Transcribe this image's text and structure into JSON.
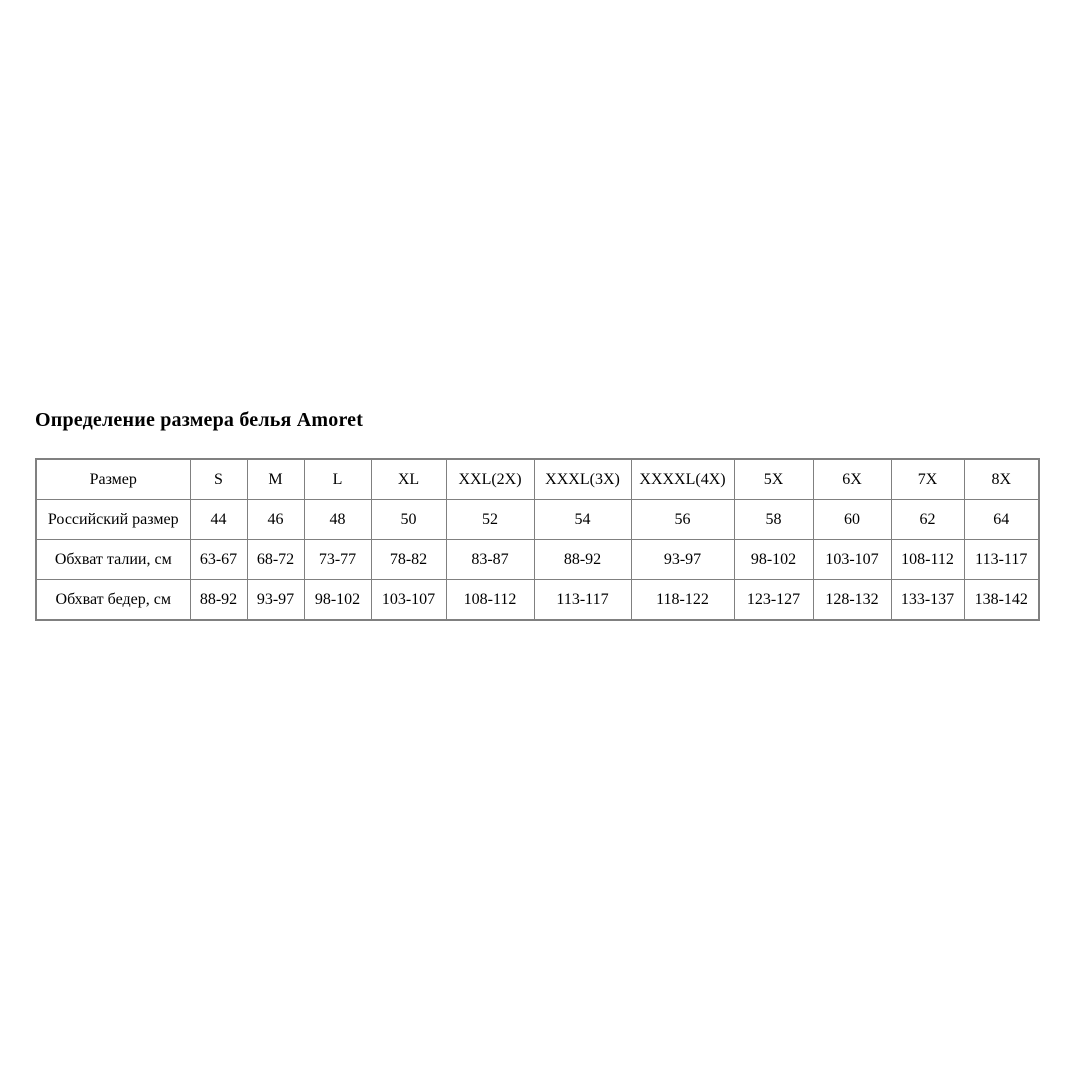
{
  "page": {
    "background_color": "#ffffff",
    "text_color": "#000000",
    "table_border_color": "#808080"
  },
  "title": "Определение размера белья Amoret",
  "chart_data": {
    "type": "table",
    "title": "Определение размера белья Amoret",
    "columns": [
      "Размер",
      "S",
      "M",
      "L",
      "XL",
      "XXL(2X)",
      "XXXL(3X)",
      "XXXXL(4X)",
      "5X",
      "6X",
      "7X",
      "8X"
    ],
    "rows": [
      [
        "Российский размер",
        "44",
        "46",
        "48",
        "50",
        "52",
        "54",
        "56",
        "58",
        "60",
        "62",
        "64"
      ],
      [
        "Обхват талии, см",
        "63-67",
        "68-72",
        "73-77",
        "78-82",
        "83-87",
        "88-92",
        "93-97",
        "98-102",
        "103-107",
        "108-112",
        "113-117"
      ],
      [
        "Обхват бедер, см",
        "88-92",
        "93-97",
        "98-102",
        "103-107",
        "108-112",
        "113-117",
        "118-122",
        "123-127",
        "128-132",
        "133-137",
        "138-142"
      ]
    ]
  }
}
